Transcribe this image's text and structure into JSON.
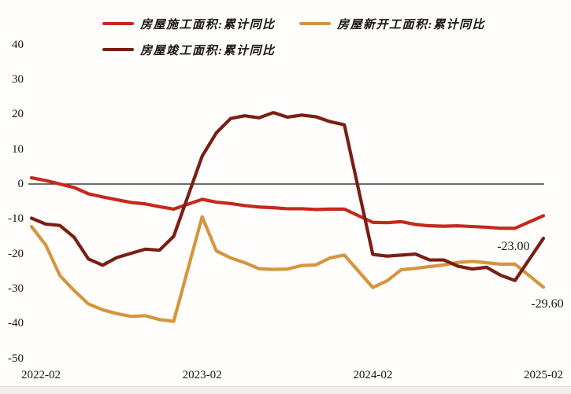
{
  "chart": {
    "background": "#fffefd",
    "legend": [
      {
        "label": "房屋施工面积:累计同比",
        "color": "#c7281c"
      },
      {
        "label": "房屋新开工面积:累计同比",
        "color": "#d5953e"
      },
      {
        "label": "房屋竣工面积:累计同比",
        "color": "#7a1e13"
      }
    ],
    "annotations": [
      {
        "text": "-23.00",
        "series": "房屋新开工面积:累计同比",
        "month": "2024-12",
        "value": -23.0
      },
      {
        "text": "-29.60",
        "series": "房屋新开工面积:累计同比",
        "month": "2025-02",
        "value": -29.6
      }
    ]
  },
  "chart_data": {
    "type": "line",
    "title": "",
    "xlabel": "",
    "ylabel": "",
    "ylim": [
      -50,
      40
    ],
    "grid": false,
    "zero_line": true,
    "legend_position": "top",
    "x": [
      "2022-02",
      "2022-03",
      "2022-04",
      "2022-05",
      "2022-06",
      "2022-07",
      "2022-08",
      "2022-09",
      "2022-10",
      "2022-11",
      "2022-12",
      "2023-02",
      "2023-03",
      "2023-04",
      "2023-05",
      "2023-06",
      "2023-07",
      "2023-08",
      "2023-09",
      "2023-10",
      "2023-11",
      "2023-12",
      "2024-02",
      "2024-03",
      "2024-04",
      "2024-05",
      "2024-06",
      "2024-07",
      "2024-08",
      "2024-09",
      "2024-10",
      "2024-11",
      "2024-12",
      "2025-02"
    ],
    "x_month_offset": [
      0,
      1,
      2,
      3,
      4,
      5,
      6,
      7,
      8,
      9,
      10,
      12,
      13,
      14,
      15,
      16,
      17,
      18,
      19,
      20,
      21,
      22,
      24,
      25,
      26,
      27,
      28,
      29,
      30,
      31,
      32,
      33,
      34,
      36
    ],
    "x_axis_ticks": [
      {
        "label": "2022-02",
        "month_offset": 0
      },
      {
        "label": "2023-02",
        "month_offset": 12
      },
      {
        "label": "2024-02",
        "month_offset": 24
      },
      {
        "label": "2025-02",
        "month_offset": 36
      }
    ],
    "y_axis_ticks": [
      40,
      30,
      20,
      10,
      0,
      -10,
      -20,
      -30,
      -40,
      -50
    ],
    "series": [
      {
        "name": "房屋施工面积:累计同比",
        "color": "#c7281c",
        "values": [
          1.8,
          1.0,
          0.0,
          -1.0,
          -2.8,
          -3.7,
          -4.5,
          -5.3,
          -5.7,
          -6.5,
          -7.2,
          -4.4,
          -5.2,
          -5.6,
          -6.2,
          -6.6,
          -6.8,
          -7.1,
          -7.1,
          -7.3,
          -7.2,
          -7.2,
          -11.0,
          -11.1,
          -10.8,
          -11.6,
          -12.0,
          -12.1,
          -12.0,
          -12.2,
          -12.4,
          -12.7,
          -12.7,
          -9.1
        ]
      },
      {
        "name": "房屋新开工面积:累计同比",
        "color": "#d5953e",
        "values": [
          -12.2,
          -17.5,
          -26.3,
          -30.6,
          -34.4,
          -36.1,
          -37.2,
          -38.0,
          -37.8,
          -38.9,
          -39.4,
          -9.4,
          -19.2,
          -21.2,
          -22.6,
          -24.3,
          -24.5,
          -24.4,
          -23.4,
          -23.2,
          -21.2,
          -20.4,
          -29.7,
          -27.8,
          -24.6,
          -24.2,
          -23.7,
          -23.2,
          -22.5,
          -22.2,
          -22.6,
          -23.0,
          -23.0,
          -29.6
        ]
      },
      {
        "name": "房屋竣工面积:累计同比",
        "color": "#7a1e13",
        "values": [
          -9.8,
          -11.5,
          -11.9,
          -15.3,
          -21.5,
          -23.3,
          -21.1,
          -19.9,
          -18.7,
          -19.0,
          -15.0,
          8.0,
          14.7,
          18.8,
          19.6,
          19.0,
          20.5,
          19.2,
          19.8,
          19.3,
          17.9,
          17.0,
          -20.2,
          -20.7,
          -20.4,
          -20.1,
          -21.8,
          -21.8,
          -23.6,
          -24.4,
          -23.9,
          -26.2,
          -27.7,
          -15.6
        ]
      }
    ]
  }
}
